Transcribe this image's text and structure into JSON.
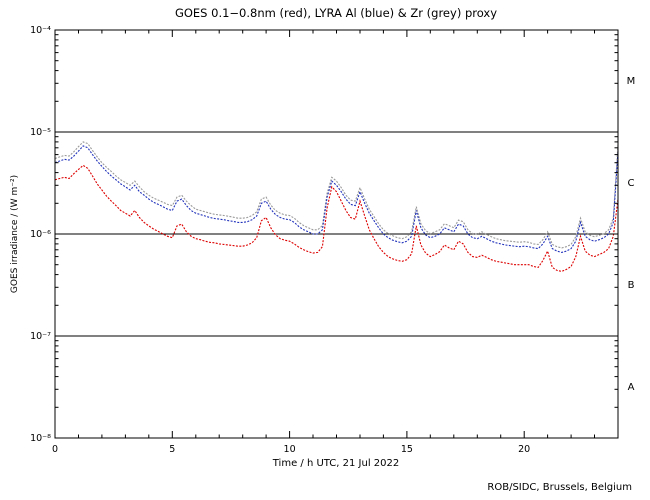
{
  "page": {
    "background": "#ffffff"
  },
  "credit": "ROB/SIDC, Brussels, Belgium",
  "chart_data": {
    "type": "line",
    "title": "GOES 0.1−0.8nm (red), LYRA Al (blue) & Zr (grey) proxy",
    "xlabel": "Time / h UTC, 21 Jul 2022",
    "ylabel": "GOES irradiance / (W m⁻²)",
    "grid": false,
    "legend_position": "none",
    "x_range": [
      0,
      24
    ],
    "x_major_ticks": [
      0,
      5,
      10,
      15,
      20
    ],
    "x_minor_step": 1,
    "y_scale": "log",
    "y_range_exp": [
      -8,
      -4
    ],
    "y_tick_labels": [
      "10⁻⁸",
      "10⁻⁷",
      "10⁻⁶",
      "10⁻⁵",
      "10⁻⁴"
    ],
    "hlines": [
      1e-05,
      1e-06,
      1e-07
    ],
    "class_labels": [
      {
        "text": "M",
        "log_center": -4.5
      },
      {
        "text": "C",
        "log_center": -5.5
      },
      {
        "text": "B",
        "log_center": -6.5
      },
      {
        "text": "A",
        "log_center": -7.5
      }
    ],
    "x_start": 0,
    "x_step": 0.2,
    "unit_scale": 1e-06,
    "series": [
      {
        "id": "lyra-zr",
        "name": "LYRA Zr proxy",
        "color": "#999999",
        "values": [
          5.5,
          5.7,
          5.9,
          5.8,
          6.4,
          7.2,
          8.0,
          7.7,
          6.6,
          5.7,
          5.0,
          4.5,
          4.1,
          3.7,
          3.4,
          3.2,
          3.0,
          3.3,
          2.9,
          2.6,
          2.4,
          2.25,
          2.15,
          2.05,
          1.95,
          1.9,
          2.3,
          2.4,
          2.1,
          1.9,
          1.75,
          1.7,
          1.65,
          1.6,
          1.56,
          1.54,
          1.52,
          1.49,
          1.46,
          1.43,
          1.43,
          1.45,
          1.52,
          1.65,
          2.2,
          2.3,
          1.92,
          1.7,
          1.6,
          1.54,
          1.52,
          1.43,
          1.3,
          1.21,
          1.15,
          1.1,
          1.1,
          1.21,
          2.5,
          3.6,
          3.3,
          2.85,
          2.4,
          2.15,
          2.1,
          2.85,
          2.2,
          1.75,
          1.48,
          1.26,
          1.1,
          1.01,
          0.96,
          0.92,
          0.9,
          0.94,
          1.05,
          1.85,
          1.26,
          1.08,
          1.01,
          1.05,
          1.1,
          1.26,
          1.21,
          1.15,
          1.37,
          1.32,
          1.1,
          1.01,
          0.99,
          1.05,
          0.99,
          0.94,
          0.9,
          0.88,
          0.86,
          0.85,
          0.84,
          0.83,
          0.84,
          0.83,
          0.8,
          0.79,
          0.88,
          1.05,
          0.79,
          0.75,
          0.73,
          0.75,
          0.79,
          0.94,
          1.43,
          1.05,
          0.97,
          0.94,
          0.97,
          1.01,
          1.1,
          1.43,
          7.5
        ]
      },
      {
        "id": "lyra-al",
        "name": "LYRA Al proxy",
        "color": "#2233bb",
        "values": [
          5.0,
          5.2,
          5.4,
          5.3,
          5.8,
          6.5,
          7.3,
          7.0,
          6.0,
          5.2,
          4.6,
          4.1,
          3.7,
          3.4,
          3.1,
          2.9,
          2.7,
          3.0,
          2.6,
          2.4,
          2.2,
          2.05,
          1.95,
          1.85,
          1.75,
          1.7,
          2.1,
          2.2,
          1.9,
          1.7,
          1.6,
          1.55,
          1.5,
          1.45,
          1.42,
          1.4,
          1.38,
          1.35,
          1.33,
          1.3,
          1.3,
          1.32,
          1.38,
          1.5,
          2.0,
          2.1,
          1.75,
          1.55,
          1.45,
          1.4,
          1.38,
          1.3,
          1.18,
          1.1,
          1.05,
          1.0,
          1.0,
          1.1,
          2.3,
          3.3,
          3.0,
          2.6,
          2.2,
          1.95,
          1.9,
          2.6,
          2.0,
          1.6,
          1.35,
          1.15,
          1.0,
          0.92,
          0.87,
          0.84,
          0.82,
          0.85,
          0.95,
          1.7,
          1.15,
          0.98,
          0.92,
          0.95,
          1.0,
          1.15,
          1.1,
          1.05,
          1.25,
          1.2,
          1.0,
          0.92,
          0.9,
          0.95,
          0.9,
          0.85,
          0.82,
          0.8,
          0.78,
          0.77,
          0.76,
          0.75,
          0.76,
          0.75,
          0.73,
          0.72,
          0.8,
          0.95,
          0.72,
          0.68,
          0.66,
          0.68,
          0.72,
          0.85,
          1.3,
          0.95,
          0.88,
          0.85,
          0.88,
          0.92,
          1.0,
          1.3,
          6.5
        ]
      },
      {
        "id": "goes",
        "name": "GOES 0.1-0.8nm",
        "color": "#dd0000",
        "values": [
          3.4,
          3.5,
          3.6,
          3.5,
          3.9,
          4.3,
          4.7,
          4.4,
          3.7,
          3.1,
          2.7,
          2.35,
          2.1,
          1.9,
          1.7,
          1.6,
          1.5,
          1.7,
          1.45,
          1.3,
          1.2,
          1.12,
          1.06,
          1.0,
          0.95,
          0.92,
          1.2,
          1.25,
          1.05,
          0.95,
          0.9,
          0.88,
          0.85,
          0.83,
          0.82,
          0.8,
          0.79,
          0.78,
          0.77,
          0.76,
          0.76,
          0.78,
          0.82,
          0.92,
          1.35,
          1.45,
          1.15,
          0.98,
          0.9,
          0.87,
          0.85,
          0.8,
          0.74,
          0.7,
          0.67,
          0.65,
          0.66,
          0.75,
          1.8,
          2.9,
          2.6,
          2.1,
          1.7,
          1.45,
          1.4,
          2.1,
          1.5,
          1.1,
          0.9,
          0.75,
          0.66,
          0.6,
          0.57,
          0.55,
          0.54,
          0.56,
          0.64,
          1.2,
          0.78,
          0.65,
          0.6,
          0.63,
          0.67,
          0.78,
          0.73,
          0.7,
          0.85,
          0.8,
          0.66,
          0.6,
          0.59,
          0.62,
          0.59,
          0.56,
          0.54,
          0.53,
          0.52,
          0.51,
          0.5,
          0.5,
          0.5,
          0.5,
          0.48,
          0.47,
          0.55,
          0.68,
          0.47,
          0.44,
          0.43,
          0.45,
          0.48,
          0.6,
          0.95,
          0.68,
          0.62,
          0.6,
          0.63,
          0.66,
          0.72,
          0.95,
          2.2
        ]
      }
    ]
  }
}
